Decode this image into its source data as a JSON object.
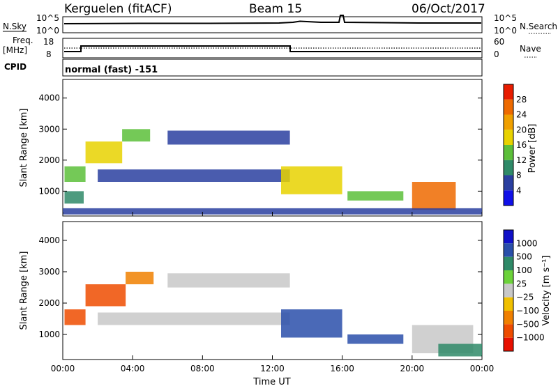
{
  "header": {
    "station": "Kerguelen (fitACF)",
    "beam": "Beam 15",
    "date": "06/Oct/2017"
  },
  "strip_noise": {
    "left_label": "N.Sky",
    "right_label": "N.Search",
    "left_ticks": [
      "10^5",
      "10^0"
    ],
    "right_ticks": [
      "10^5",
      "10^0"
    ]
  },
  "strip_freq": {
    "left_label_line1": "Freq.",
    "left_label_line2": "[MHz]",
    "right_label": "Nave",
    "left_ticks": [
      "18",
      "8"
    ],
    "right_ticks": [
      "60",
      "0"
    ]
  },
  "strip_cpid": {
    "label": "CPID",
    "text": "normal (fast) -151"
  },
  "colors": {
    "power_scale": [
      "#1010e8",
      "#2a3fa0",
      "#2f8a68",
      "#5cbf3a",
      "#e8d200",
      "#f0a000",
      "#ee6a00",
      "#e81c00"
    ],
    "velocity_scale": [
      "#1010c8",
      "#2a4faa",
      "#2f8a68",
      "#6cd23a",
      "#c8c8c8",
      "#f0c000",
      "#f08000",
      "#ee4c00",
      "#e81000"
    ]
  },
  "chart_data": [
    {
      "type": "heatmap",
      "panel": "power",
      "xlabel": "",
      "ylabel": "Slant Range [km]",
      "xlim": [
        "00:00",
        "00:00"
      ],
      "ylim": [
        200,
        4600
      ],
      "x_ticks": [
        "00:00",
        "04:00",
        "08:00",
        "12:00",
        "16:00",
        "20:00",
        "00:00"
      ],
      "y_ticks": [
        1000,
        2000,
        3000,
        4000
      ],
      "colorbar": {
        "label": "Power [dB]",
        "ticks": [
          "28",
          "24",
          "20",
          "16",
          "12",
          "8",
          "4"
        ],
        "range": [
          0,
          32
        ]
      },
      "features": [
        {
          "t0": 0.1,
          "t1": 1.2,
          "r0": 600,
          "r1": 1000,
          "value": 8
        },
        {
          "t0": 0.1,
          "t1": 1.3,
          "r0": 1300,
          "r1": 1800,
          "value": 14
        },
        {
          "t0": 1.3,
          "t1": 3.4,
          "r0": 1900,
          "r1": 2600,
          "value": 16
        },
        {
          "t0": 3.4,
          "t1": 5.0,
          "r0": 2600,
          "r1": 3000,
          "value": 12
        },
        {
          "t0": 2.0,
          "t1": 13.0,
          "r0": 1300,
          "r1": 1700,
          "value": 6
        },
        {
          "t0": 6.0,
          "t1": 13.0,
          "r0": 2500,
          "r1": 2950,
          "value": 6
        },
        {
          "t0": 12.5,
          "t1": 16.0,
          "r0": 900,
          "r1": 1800,
          "value": 18
        },
        {
          "t0": 16.3,
          "t1": 19.5,
          "r0": 700,
          "r1": 1000,
          "value": 12
        },
        {
          "t0": 20.0,
          "t1": 22.5,
          "r0": 400,
          "r1": 1300,
          "value": 26
        },
        {
          "t0": 0.0,
          "t1": 24.0,
          "r0": 250,
          "r1": 450,
          "value": 4
        }
      ]
    },
    {
      "type": "heatmap",
      "panel": "velocity",
      "xlabel": "Time UT",
      "ylabel": "Slant Range [km]",
      "xlim": [
        "00:00",
        "00:00"
      ],
      "ylim": [
        200,
        4600
      ],
      "x_ticks": [
        "00:00",
        "04:00",
        "08:00",
        "12:00",
        "16:00",
        "20:00",
        "00:00"
      ],
      "y_ticks": [
        1000,
        2000,
        3000,
        4000
      ],
      "colorbar": {
        "label": "Velocity [m s⁻¹]",
        "ticks": [
          "1000",
          "500",
          "100",
          "25",
          "−25",
          "−100",
          "−500",
          "−1000"
        ]
      },
      "features": [
        {
          "t0": 0.1,
          "t1": 1.3,
          "r0": 1300,
          "r1": 1800,
          "value": -500
        },
        {
          "t0": 1.3,
          "t1": 3.6,
          "r0": 1900,
          "r1": 2600,
          "value": -500
        },
        {
          "t0": 3.6,
          "t1": 5.2,
          "r0": 2600,
          "r1": 3000,
          "value": -250
        },
        {
          "t0": 2.0,
          "t1": 13.0,
          "r0": 1300,
          "r1": 1700,
          "value": 0
        },
        {
          "t0": 6.0,
          "t1": 13.0,
          "r0": 2500,
          "r1": 2950,
          "value": 0
        },
        {
          "t0": 12.5,
          "t1": 16.0,
          "r0": 900,
          "r1": 1800,
          "value": 200
        },
        {
          "t0": 16.3,
          "t1": 19.5,
          "r0": 700,
          "r1": 1000,
          "value": 200
        },
        {
          "t0": 20.0,
          "t1": 23.5,
          "r0": 400,
          "r1": 1300,
          "value": 0
        },
        {
          "t0": 21.5,
          "t1": 24.0,
          "r0": 300,
          "r1": 700,
          "value": 80
        }
      ]
    }
  ]
}
